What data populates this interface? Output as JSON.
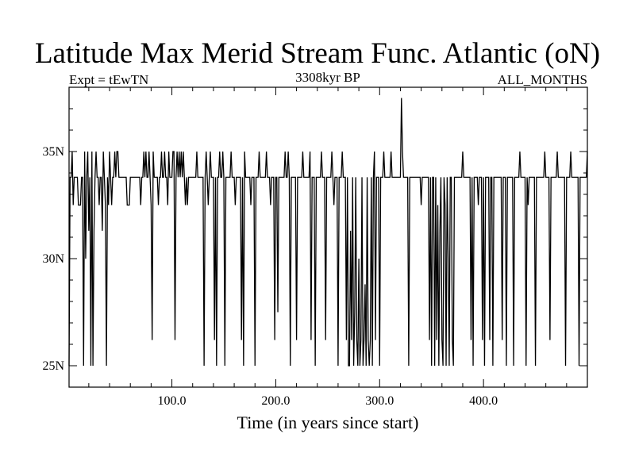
{
  "chart_data": {
    "type": "line",
    "title": "Latitude Max Merid Stream Func. Atlantic (oN)",
    "subtitle_left": "Expt = tEwTN",
    "subtitle_center": "3308kyr BP",
    "subtitle_right": "ALL_MONTHS",
    "xlabel": "Time (in years since start)",
    "ylabel": "",
    "xlim": [
      1,
      500
    ],
    "ylim": [
      24,
      38
    ],
    "x_ticks": [
      100,
      200,
      300,
      400
    ],
    "x_tick_labels": [
      "100.0",
      "200.0",
      "300.0",
      "400.0"
    ],
    "y_ticks": [
      25,
      30,
      35
    ],
    "y_tick_labels": [
      "25N",
      "30N",
      "35N"
    ],
    "grid": false,
    "legend": "none",
    "line_color": "#000000",
    "series": [
      {
        "values": [
          25.0,
          33.8,
          33.8,
          35.0,
          32.5,
          33.8,
          33.8,
          33.8,
          33.8,
          32.5,
          32.5,
          32.5,
          33.8,
          33.8,
          25.0,
          35.0,
          30.0,
          33.8,
          35.0,
          31.3,
          33.8,
          25.0,
          35.0,
          25.0,
          31.3,
          33.8,
          35.0,
          33.8,
          33.8,
          32.5,
          33.8,
          33.8,
          31.3,
          35.0,
          33.8,
          32.5,
          25.0,
          33.8,
          32.5,
          35.0,
          33.8,
          32.5,
          33.8,
          33.8,
          35.0,
          33.8,
          35.0,
          35.0,
          33.8,
          33.8,
          33.8,
          33.8,
          33.8,
          33.8,
          33.8,
          33.8,
          32.5,
          32.5,
          32.5,
          33.8,
          33.8,
          33.8,
          33.8,
          33.8,
          33.8,
          33.8,
          33.8,
          33.8,
          33.8,
          32.5,
          33.8,
          33.8,
          35.0,
          33.8,
          35.0,
          33.8,
          33.8,
          35.0,
          33.8,
          32.5,
          26.2,
          35.0,
          33.8,
          33.8,
          33.8,
          33.8,
          32.5,
          33.8,
          33.8,
          35.0,
          33.8,
          33.8,
          35.0,
          33.8,
          33.8,
          32.5,
          35.0,
          33.8,
          33.8,
          33.8,
          35.0,
          35.0,
          26.2,
          33.8,
          35.0,
          33.8,
          35.0,
          33.8,
          35.0,
          33.8,
          35.0,
          33.8,
          32.5,
          33.8,
          32.5,
          33.8,
          33.8,
          33.8,
          33.8,
          33.8,
          33.8,
          33.8,
          33.8,
          35.0,
          33.8,
          33.8,
          33.8,
          33.8,
          33.8,
          33.8,
          25.0,
          33.8,
          35.0,
          33.8,
          32.5,
          33.8,
          35.0,
          33.8,
          33.8,
          33.8,
          26.2,
          33.8,
          25.0,
          33.8,
          33.8,
          35.0,
          33.8,
          33.8,
          35.0,
          33.8,
          25.0,
          33.8,
          33.8,
          33.8,
          33.8,
          33.8,
          35.0,
          33.8,
          33.8,
          33.8,
          32.5,
          33.8,
          33.8,
          33.8,
          33.8,
          33.8,
          26.2,
          33.8,
          25.0,
          35.0,
          33.8,
          33.8,
          33.8,
          33.8,
          33.8,
          32.5,
          33.8,
          33.8,
          33.8,
          25.0,
          33.8,
          33.8,
          33.8,
          35.0,
          33.8,
          33.8,
          33.8,
          33.8,
          33.8,
          33.8,
          35.0,
          33.8,
          33.8,
          33.8,
          32.5,
          33.8,
          33.8,
          33.8,
          26.2,
          33.8,
          33.8,
          27.5,
          33.8,
          33.8,
          33.8,
          33.8,
          33.8,
          33.8,
          35.0,
          33.8,
          33.8,
          35.0,
          33.8,
          25.0,
          33.8,
          33.8,
          33.8,
          33.8,
          33.8,
          26.2,
          33.8,
          33.8,
          33.8,
          33.8,
          33.8,
          35.0,
          33.8,
          33.8,
          33.8,
          33.8,
          33.8,
          33.8,
          35.0,
          26.2,
          33.8,
          33.8,
          33.8,
          25.0,
          33.8,
          33.8,
          33.8,
          33.8,
          33.8,
          35.0,
          33.8,
          33.8,
          33.8,
          26.2,
          33.8,
          33.8,
          33.8,
          33.8,
          33.8,
          35.0,
          33.8,
          32.5,
          33.8,
          33.8,
          33.8,
          25.0,
          33.8,
          33.8,
          33.8,
          35.0,
          33.8,
          33.8,
          33.8,
          26.2,
          33.8,
          25.0,
          25.0,
          31.3,
          26.2,
          33.8,
          25.0,
          27.5,
          33.8,
          26.2,
          25.0,
          30.0,
          25.0,
          26.2,
          33.8,
          25.0,
          26.2,
          28.8,
          25.0,
          33.8,
          26.2,
          25.0,
          26.2,
          33.8,
          25.0,
          33.8,
          35.0,
          26.2,
          33.8,
          33.8,
          33.8,
          25.0,
          33.8,
          33.8,
          33.8,
          35.0,
          33.8,
          33.8,
          33.8,
          33.8,
          33.8,
          33.8,
          35.0,
          33.8,
          33.8,
          33.8,
          33.8,
          33.8,
          33.8,
          33.8,
          33.8,
          33.8,
          37.5,
          35.0,
          33.8,
          33.8,
          33.8,
          33.8,
          33.8,
          25.0,
          33.8,
          33.8,
          33.8,
          33.8,
          33.8,
          33.8,
          33.8,
          33.8,
          33.8,
          33.8,
          33.8,
          32.5,
          33.8,
          33.8,
          33.8,
          33.8,
          33.8,
          33.8,
          33.8,
          26.2,
          33.8,
          25.0,
          33.8,
          33.8,
          25.0,
          33.8,
          26.2,
          32.5,
          25.0,
          31.3,
          33.8,
          26.2,
          25.0,
          33.8,
          32.5,
          25.0,
          33.8,
          30.0,
          25.0,
          33.8,
          33.8,
          26.2,
          25.0,
          33.8,
          33.8,
          33.8,
          33.8,
          33.8,
          33.8,
          33.8,
          33.8,
          35.0,
          33.8,
          33.8,
          33.8,
          33.8,
          33.8,
          33.8,
          33.8,
          26.2,
          33.8,
          25.0,
          33.8,
          33.8,
          33.8,
          33.8,
          32.5,
          33.8,
          33.8,
          33.8,
          26.2,
          33.8,
          25.0,
          33.8,
          33.8,
          33.8,
          33.8,
          26.2,
          33.8,
          33.8,
          25.0,
          33.8,
          33.8,
          33.8,
          33.8,
          33.8,
          33.8,
          33.8,
          33.8,
          26.2,
          33.8,
          33.8,
          33.8,
          25.0,
          33.8,
          33.8,
          33.8,
          33.8,
          33.8,
          33.8,
          25.0,
          33.8,
          33.8,
          33.8,
          33.8,
          33.8,
          35.0,
          33.8,
          33.8,
          33.8,
          33.8,
          33.8,
          25.0,
          33.8,
          32.5,
          33.8,
          33.8,
          33.8,
          33.8,
          33.8,
          33.8,
          25.0,
          33.8,
          33.8,
          33.8,
          33.8,
          33.8,
          33.8,
          33.8,
          33.8,
          35.0,
          33.8,
          33.8,
          33.8,
          33.8,
          26.2,
          33.8,
          33.8,
          33.8,
          33.8,
          33.8,
          33.8,
          35.0,
          33.8,
          33.8,
          33.8,
          33.8,
          33.8,
          33.8,
          33.8,
          25.0,
          33.8,
          33.8,
          33.8,
          33.8,
          35.0,
          33.8,
          33.8,
          33.8,
          33.8,
          33.8,
          33.8,
          33.8,
          25.0,
          33.8,
          33.8,
          33.8,
          33.8,
          33.8,
          33.8,
          33.8,
          35.0
        ]
      }
    ]
  }
}
